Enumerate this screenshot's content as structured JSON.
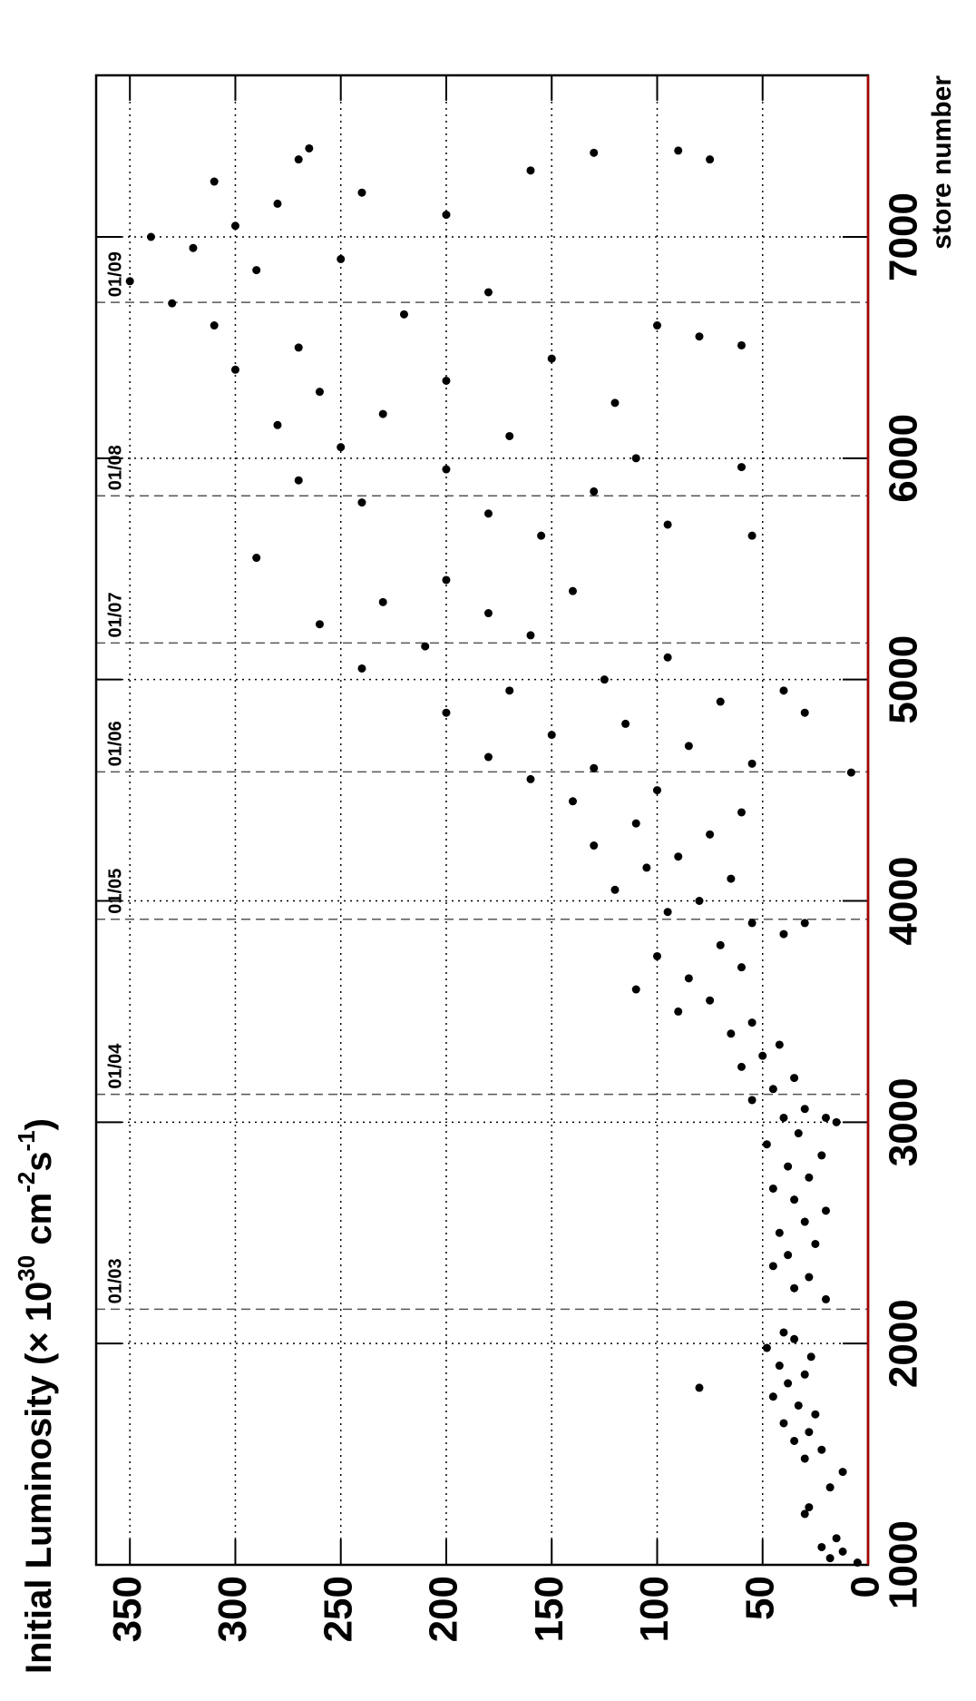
{
  "chart_data": {
    "type": "scatter",
    "ylabel": [
      "Initial Luminosity (× 10",
      "30",
      " cm",
      "-2",
      "s",
      "-1",
      ")"
    ],
    "xlabel": "store number",
    "xlim": [
      1000,
      7730
    ],
    "xticks": [
      1000,
      2000,
      3000,
      4000,
      5000,
      6000,
      7000
    ],
    "ylim": [
      0,
      366
    ],
    "yticks": [
      0,
      50,
      100,
      150,
      200,
      250,
      300,
      350
    ],
    "grid": true,
    "date_ticks": [
      {
        "value": 2155,
        "label": "01/03"
      },
      {
        "value": 3126,
        "label": "01/04"
      },
      {
        "value": 3917,
        "label": "01/05"
      },
      {
        "value": 4583,
        "label": "01/06"
      },
      {
        "value": 5165,
        "label": "01/07"
      },
      {
        "value": 5830,
        "label": "01/08"
      },
      {
        "value": 6704,
        "label": "01/09"
      }
    ],
    "series": [
      {
        "color": "#000000",
        "x": [
          1010,
          1030,
          1060,
          1080,
          1120,
          1230,
          1260,
          1350,
          1420,
          1480,
          1520,
          1560,
          1600,
          1640,
          1680,
          1720,
          1760,
          1800,
          1820,
          1860,
          1900,
          1940,
          1980,
          2020,
          2050,
          2200,
          2250,
          2300,
          2350,
          2400,
          2450,
          2500,
          2550,
          2600,
          2650,
          2700,
          2750,
          2800,
          2850,
          2900,
          2950,
          3000,
          3020,
          3060,
          3100,
          3150,
          3200,
          3250,
          3300,
          3350,
          3400,
          3450,
          3500,
          3550,
          3600,
          3650,
          3700,
          3750,
          3800,
          3850,
          3900,
          3950,
          4000,
          4050,
          4100,
          4150,
          4200,
          4250,
          4300,
          4350,
          4400,
          4450,
          4500,
          4550,
          4600,
          4650,
          4700,
          4750,
          4800,
          4850,
          4900,
          4950,
          5000,
          5050,
          5100,
          5150,
          5200,
          5250,
          5300,
          5350,
          5400,
          5450,
          5550,
          5650,
          5700,
          5750,
          5800,
          5850,
          5900,
          5950,
          6000,
          6050,
          6100,
          6150,
          6200,
          6250,
          6300,
          6350,
          6400,
          6450,
          6500,
          6550,
          6600,
          6650,
          6700,
          6750,
          6800,
          6850,
          6900,
          6950,
          7000,
          7050,
          7100,
          7150,
          7200,
          7250,
          7300,
          7350,
          7400,
          7380,
          7350,
          7390,
          6510,
          6600,
          5960,
          5650,
          4950,
          4850,
          4620,
          4580,
          3900,
          3020
        ],
        "values": [
          5,
          18,
          12,
          22,
          15,
          30,
          28,
          18,
          12,
          30,
          22,
          35,
          28,
          40,
          25,
          33,
          45,
          80,
          38,
          30,
          42,
          27,
          48,
          35,
          40,
          20,
          35,
          28,
          45,
          38,
          25,
          42,
          30,
          20,
          35,
          45,
          28,
          38,
          22,
          48,
          33,
          15,
          40,
          30,
          55,
          45,
          35,
          60,
          50,
          42,
          65,
          55,
          90,
          75,
          110,
          85,
          60,
          100,
          70,
          40,
          55,
          95,
          80,
          120,
          65,
          105,
          90,
          130,
          75,
          110,
          60,
          140,
          100,
          160,
          130,
          180,
          85,
          150,
          115,
          200,
          70,
          170,
          125,
          240,
          95,
          210,
          160,
          260,
          180,
          230,
          140,
          200,
          290,
          155,
          95,
          180,
          240,
          130,
          270,
          200,
          110,
          250,
          170,
          280,
          230,
          120,
          260,
          200,
          300,
          150,
          270,
          80,
          310,
          220,
          330,
          180,
          350,
          290,
          250,
          320,
          340,
          300,
          200,
          280,
          240,
          310,
          160,
          270,
          265,
          130,
          75,
          90,
          60,
          100,
          60,
          55,
          40,
          30,
          55,
          8,
          30,
          20
        ]
      }
    ]
  }
}
